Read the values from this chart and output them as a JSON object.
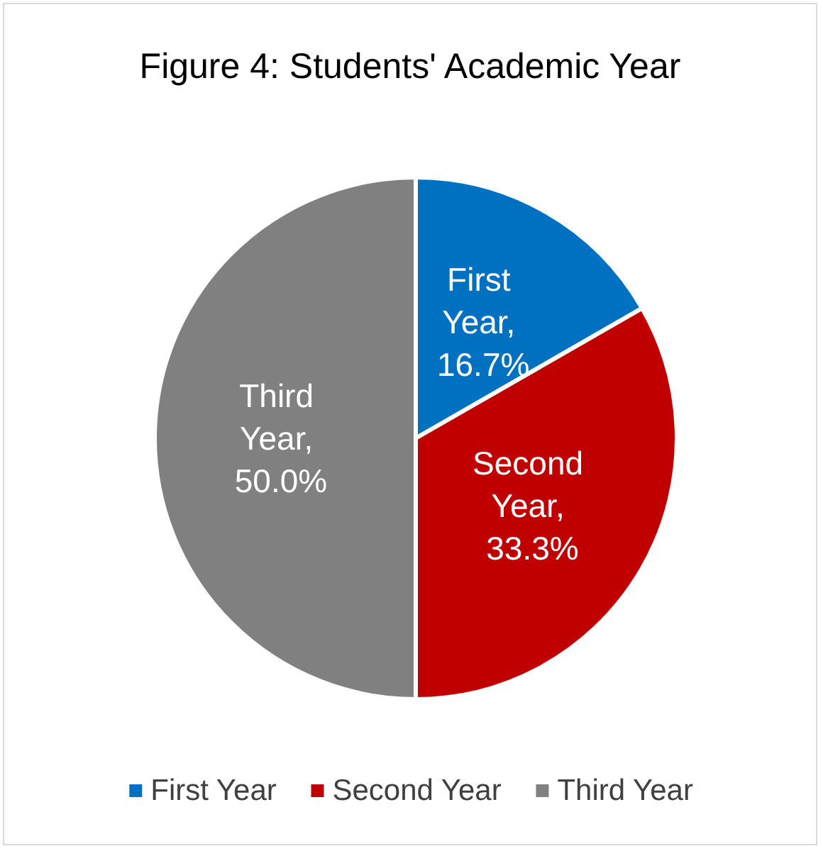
{
  "chart_data": {
    "type": "pie",
    "title": "Figure 4: Students' Academic Year",
    "categories": [
      "First Year",
      "Second Year",
      "Third Year"
    ],
    "values": [
      16.7,
      33.3,
      50.0
    ],
    "colors": [
      "#0070c0",
      "#c00000",
      "#808080"
    ],
    "value_labels": [
      "First Year, 16.7%",
      "Second Year, 33.3%",
      "Third Year, 50.0%"
    ],
    "legend": "bottom"
  }
}
